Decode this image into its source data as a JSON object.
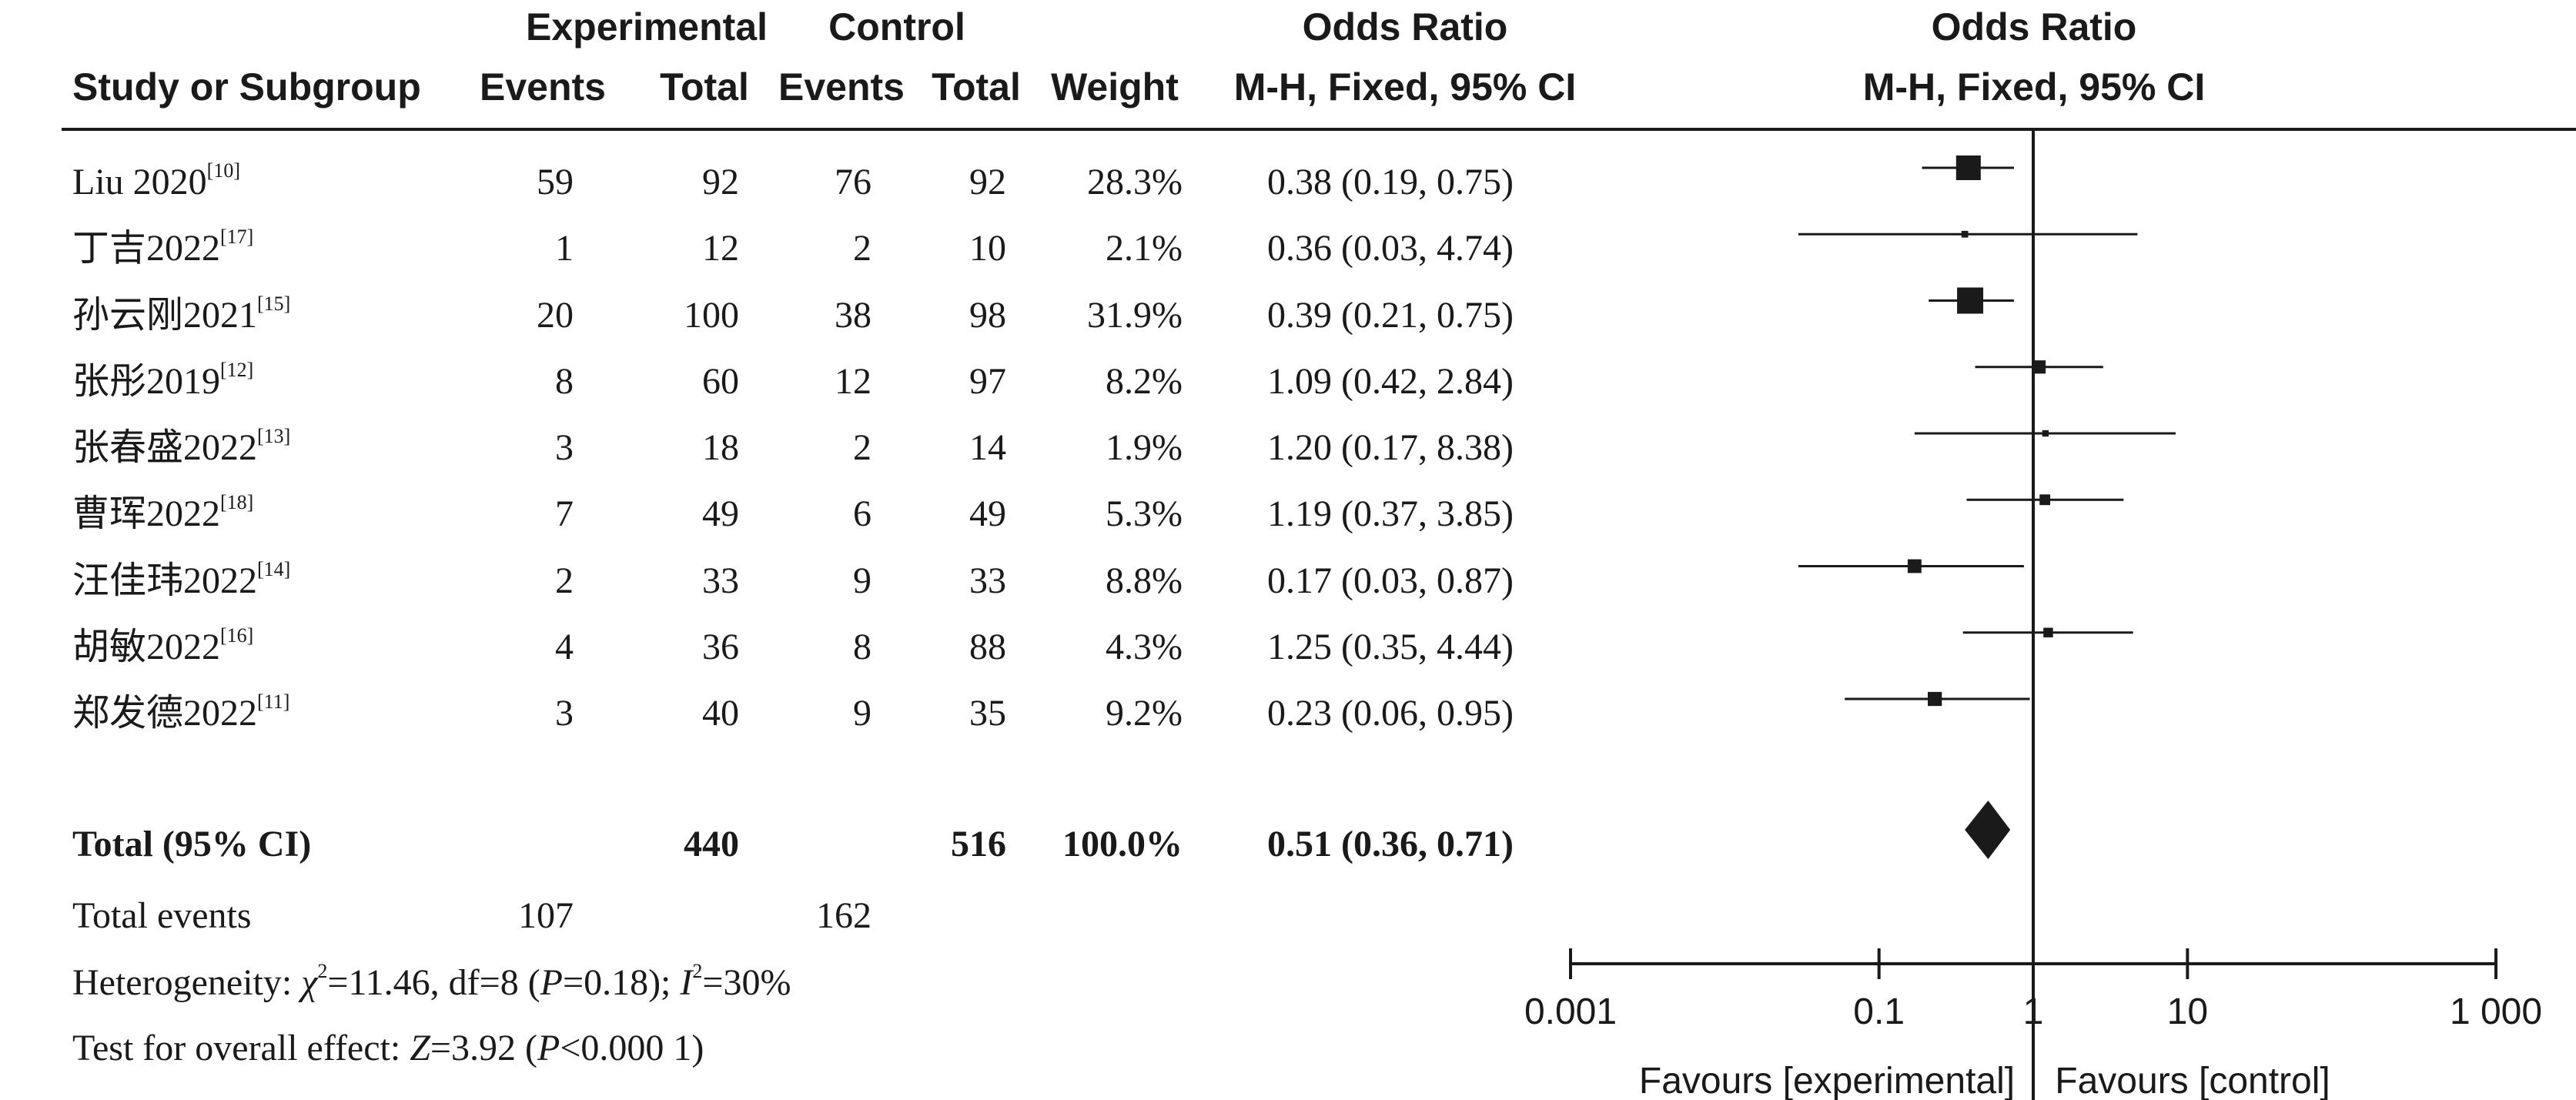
{
  "header": {
    "group1": "Experimental",
    "group2": "Control",
    "or_top_table": "Odds Ratio",
    "or_top_plot": "Odds Ratio",
    "study": "Study or Subgroup",
    "events1": "Events",
    "total1": "Total",
    "events2": "Events",
    "total2": "Total",
    "weight": "Weight",
    "method_table": "M-H, Fixed, 95% CI",
    "method_plot": "M-H, Fixed, 95% CI"
  },
  "studies": [
    {
      "name": "Liu 2020",
      "ref": "[10]",
      "e1": "59",
      "t1": "92",
      "e2": "76",
      "t2": "92",
      "weight": "28.3%",
      "ci": "0.38 (0.19, 0.75)"
    },
    {
      "name": "丁吉2022",
      "ref": "[17]",
      "e1": "1",
      "t1": "12",
      "e2": "2",
      "t2": "10",
      "weight": "2.1%",
      "ci": "0.36 (0.03, 4.74)"
    },
    {
      "name": "孙云刚2021",
      "ref": "[15]",
      "e1": "20",
      "t1": "100",
      "e2": "38",
      "t2": "98",
      "weight": "31.9%",
      "ci": "0.39 (0.21, 0.75)"
    },
    {
      "name": "张彤2019",
      "ref": "[12]",
      "e1": "8",
      "t1": "60",
      "e2": "12",
      "t2": "97",
      "weight": "8.2%",
      "ci": "1.09 (0.42, 2.84)"
    },
    {
      "name": "张春盛2022",
      "ref": "[13]",
      "e1": "3",
      "t1": "18",
      "e2": "2",
      "t2": "14",
      "weight": "1.9%",
      "ci": "1.20 (0.17, 8.38)"
    },
    {
      "name": "曹珲2022",
      "ref": "[18]",
      "e1": "7",
      "t1": "49",
      "e2": "6",
      "t2": "49",
      "weight": "5.3%",
      "ci": "1.19 (0.37, 3.85)"
    },
    {
      "name": "汪佳玮2022",
      "ref": "[14]",
      "e1": "2",
      "t1": "33",
      "e2": "9",
      "t2": "33",
      "weight": "8.8%",
      "ci": "0.17 (0.03, 0.87)"
    },
    {
      "name": "胡敏2022",
      "ref": "[16]",
      "e1": "4",
      "t1": "36",
      "e2": "8",
      "t2": "88",
      "weight": "4.3%",
      "ci": "1.25 (0.35, 4.44)"
    },
    {
      "name": "郑发德2022",
      "ref": "[11]",
      "e1": "3",
      "t1": "40",
      "e2": "9",
      "t2": "35",
      "weight": "9.2%",
      "ci": "0.23 (0.06, 0.95)"
    }
  ],
  "total": {
    "label": "Total (95% CI)",
    "t1": "440",
    "t2": "516",
    "weight": "100.0%",
    "ci": "0.51 (0.36, 0.71)"
  },
  "total_events": {
    "label": "Total events",
    "e1": "107",
    "e2": "162"
  },
  "footer": {
    "heterogeneity_prefix": "Heterogeneity: ",
    "heterogeneity_chi": "χ",
    "heterogeneity_mid": "=11.46, df=8 (",
    "heterogeneity_p": "P",
    "heterogeneity_pval": "=0.18); ",
    "heterogeneity_i": "I",
    "heterogeneity_ival": "=30%",
    "overall_prefix": "Test for overall effect: ",
    "overall_z": "Z",
    "overall_zval": "=3.92 (",
    "overall_p": "P",
    "overall_pval": "<0.000 1)"
  },
  "chart_data": {
    "type": "forest",
    "x_scale": "log",
    "xlim": [
      0.001,
      1000
    ],
    "tick_labels": [
      "0.001",
      "0.1",
      "1",
      "10",
      "1 000"
    ],
    "ticks": [
      0.001,
      0.1,
      1,
      10,
      1000
    ],
    "favours_left": "Favours [experimental]",
    "favours_right": "Favours [control]",
    "studies": [
      {
        "or": 0.38,
        "lo": 0.19,
        "hi": 0.75,
        "weight": 28.3
      },
      {
        "or": 0.36,
        "lo": 0.03,
        "hi": 4.74,
        "weight": 2.1
      },
      {
        "or": 0.39,
        "lo": 0.21,
        "hi": 0.75,
        "weight": 31.9
      },
      {
        "or": 1.09,
        "lo": 0.42,
        "hi": 2.84,
        "weight": 8.2
      },
      {
        "or": 1.2,
        "lo": 0.17,
        "hi": 8.38,
        "weight": 1.9
      },
      {
        "or": 1.19,
        "lo": 0.37,
        "hi": 3.85,
        "weight": 5.3
      },
      {
        "or": 0.17,
        "lo": 0.03,
        "hi": 0.87,
        "weight": 8.8
      },
      {
        "or": 1.25,
        "lo": 0.35,
        "hi": 4.44,
        "weight": 4.3
      },
      {
        "or": 0.23,
        "lo": 0.06,
        "hi": 0.95,
        "weight": 9.2
      }
    ],
    "pooled": {
      "or": 0.51,
      "lo": 0.36,
      "hi": 0.71
    }
  }
}
